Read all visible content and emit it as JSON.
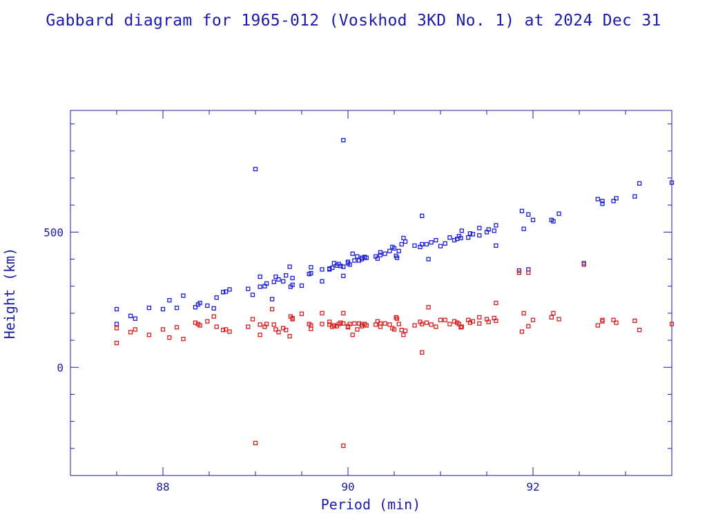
{
  "chart_data": {
    "type": "scatter",
    "title": "Gabbard diagram for 1965-012 (Voskhod 3KD No. 1) at 2024 Dec 31",
    "xlabel": "Period (min)",
    "ylabel": "Height (km)",
    "xlim": [
      87.0,
      93.5
    ],
    "ylim": [
      -400,
      950
    ],
    "x_ticks_major": [
      88,
      90,
      92
    ],
    "x_ticks_minor_step": 0.5,
    "y_ticks_major": [
      0,
      500
    ],
    "y_ticks_minor_step": 100,
    "grid": false,
    "legend": "none",
    "series": [
      {
        "color": "#1a1ad8",
        "label_role": "apogee",
        "points": [
          [
            87.5,
            215
          ],
          [
            87.5,
            160
          ],
          [
            87.65,
            190
          ],
          [
            87.7,
            180
          ],
          [
            87.85,
            220
          ],
          [
            88.0,
            215
          ],
          [
            88.07,
            248
          ],
          [
            88.15,
            220
          ],
          [
            88.22,
            265
          ],
          [
            88.35,
            222
          ],
          [
            88.38,
            232
          ],
          [
            88.4,
            238
          ],
          [
            88.48,
            228
          ],
          [
            88.55,
            218
          ],
          [
            88.58,
            258
          ],
          [
            88.65,
            278
          ],
          [
            88.68,
            280
          ],
          [
            88.72,
            288
          ],
          [
            88.92,
            290
          ],
          [
            88.97,
            268
          ],
          [
            89.05,
            298
          ],
          [
            89.05,
            335
          ],
          [
            89.1,
            300
          ],
          [
            89.12,
            310
          ],
          [
            89.18,
            252
          ],
          [
            89.2,
            316
          ],
          [
            89.22,
            335
          ],
          [
            89.25,
            325
          ],
          [
            89.3,
            318
          ],
          [
            89.33,
            340
          ],
          [
            89.37,
            372
          ],
          [
            89.38,
            298
          ],
          [
            89.4,
            305
          ],
          [
            89.4,
            330
          ],
          [
            89.5,
            302
          ],
          [
            89.58,
            345
          ],
          [
            89.6,
            348
          ],
          [
            89.6,
            370
          ],
          [
            89.72,
            318
          ],
          [
            89.72,
            362
          ],
          [
            89.8,
            365
          ],
          [
            89.8,
            362
          ],
          [
            89.83,
            368
          ],
          [
            89.85,
            385
          ],
          [
            89.88,
            376
          ],
          [
            89.9,
            382
          ],
          [
            89.92,
            375
          ],
          [
            89.95,
            338
          ],
          [
            89.95,
            372
          ],
          [
            90.0,
            390
          ],
          [
            90.0,
            385
          ],
          [
            90.02,
            380
          ],
          [
            90.05,
            420
          ],
          [
            90.07,
            395
          ],
          [
            90.1,
            410
          ],
          [
            90.12,
            395
          ],
          [
            90.15,
            400
          ],
          [
            90.15,
            405
          ],
          [
            90.18,
            408
          ],
          [
            90.2,
            405
          ],
          [
            90.3,
            410
          ],
          [
            90.32,
            402
          ],
          [
            90.35,
            415
          ],
          [
            90.35,
            425
          ],
          [
            90.4,
            420
          ],
          [
            90.45,
            430
          ],
          [
            90.48,
            445
          ],
          [
            90.5,
            440
          ],
          [
            90.52,
            412
          ],
          [
            90.53,
            405
          ],
          [
            90.55,
            430
          ],
          [
            90.58,
            455
          ],
          [
            90.6,
            478
          ],
          [
            90.62,
            465
          ],
          [
            90.72,
            450
          ],
          [
            90.78,
            445
          ],
          [
            90.8,
            455
          ],
          [
            90.8,
            560
          ],
          [
            90.85,
            455
          ],
          [
            90.87,
            400
          ],
          [
            90.9,
            462
          ],
          [
            90.95,
            470
          ],
          [
            91.0,
            448
          ],
          [
            91.05,
            458
          ],
          [
            91.1,
            480
          ],
          [
            91.15,
            470
          ],
          [
            91.18,
            475
          ],
          [
            91.2,
            485
          ],
          [
            91.22,
            478
          ],
          [
            91.23,
            505
          ],
          [
            91.3,
            480
          ],
          [
            91.32,
            495
          ],
          [
            91.35,
            492
          ],
          [
            91.42,
            515
          ],
          [
            91.42,
            488
          ],
          [
            91.5,
            500
          ],
          [
            91.52,
            510
          ],
          [
            91.58,
            505
          ],
          [
            91.6,
            525
          ],
          [
            91.6,
            450
          ],
          [
            91.85,
            358
          ],
          [
            91.88,
            578
          ],
          [
            91.9,
            512
          ],
          [
            91.95,
            565
          ],
          [
            91.95,
            362
          ],
          [
            92.0,
            545
          ],
          [
            92.2,
            545
          ],
          [
            92.22,
            540
          ],
          [
            92.28,
            568
          ],
          [
            92.55,
            385
          ],
          [
            92.7,
            622
          ],
          [
            92.75,
            605
          ],
          [
            92.75,
            615
          ],
          [
            92.87,
            615
          ],
          [
            92.9,
            625
          ],
          [
            93.1,
            632
          ],
          [
            93.15,
            680
          ],
          [
            93.5,
            683
          ],
          [
            89.0,
            733
          ],
          [
            89.95,
            840
          ]
        ]
      },
      {
        "color": "#d81a1a",
        "label_role": "perigee",
        "points": [
          [
            87.5,
            145
          ],
          [
            87.5,
            90
          ],
          [
            87.65,
            130
          ],
          [
            87.7,
            140
          ],
          [
            87.85,
            120
          ],
          [
            88.0,
            140
          ],
          [
            88.07,
            110
          ],
          [
            88.15,
            148
          ],
          [
            88.22,
            105
          ],
          [
            88.35,
            165
          ],
          [
            88.38,
            160
          ],
          [
            88.4,
            155
          ],
          [
            88.48,
            170
          ],
          [
            88.55,
            188
          ],
          [
            88.58,
            150
          ],
          [
            88.65,
            138
          ],
          [
            88.68,
            140
          ],
          [
            88.72,
            132
          ],
          [
            88.92,
            150
          ],
          [
            88.97,
            178
          ],
          [
            89.05,
            158
          ],
          [
            89.05,
            120
          ],
          [
            89.1,
            150
          ],
          [
            89.12,
            160
          ],
          [
            89.18,
            215
          ],
          [
            89.2,
            158
          ],
          [
            89.22,
            140
          ],
          [
            89.25,
            130
          ],
          [
            89.3,
            145
          ],
          [
            89.33,
            138
          ],
          [
            89.37,
            115
          ],
          [
            89.38,
            188
          ],
          [
            89.4,
            178
          ],
          [
            89.4,
            182
          ],
          [
            89.5,
            198
          ],
          [
            89.58,
            160
          ],
          [
            89.6,
            155
          ],
          [
            89.6,
            142
          ],
          [
            89.72,
            200
          ],
          [
            89.72,
            160
          ],
          [
            89.8,
            168
          ],
          [
            89.8,
            158
          ],
          [
            89.83,
            150
          ],
          [
            89.85,
            155
          ],
          [
            89.88,
            152
          ],
          [
            89.9,
            160
          ],
          [
            89.92,
            165
          ],
          [
            89.95,
            200
          ],
          [
            89.95,
            162
          ],
          [
            90.0,
            148
          ],
          [
            90.0,
            152
          ],
          [
            90.02,
            160
          ],
          [
            90.05,
            120
          ],
          [
            90.07,
            162
          ],
          [
            90.1,
            140
          ],
          [
            90.12,
            162
          ],
          [
            90.15,
            152
          ],
          [
            90.15,
            158
          ],
          [
            90.18,
            160
          ],
          [
            90.2,
            155
          ],
          [
            90.3,
            158
          ],
          [
            90.32,
            170
          ],
          [
            90.35,
            162
          ],
          [
            90.35,
            150
          ],
          [
            90.4,
            162
          ],
          [
            90.45,
            158
          ],
          [
            90.48,
            145
          ],
          [
            90.5,
            140
          ],
          [
            90.52,
            185
          ],
          [
            90.53,
            180
          ],
          [
            90.55,
            160
          ],
          [
            90.58,
            138
          ],
          [
            90.6,
            120
          ],
          [
            90.62,
            135
          ],
          [
            90.72,
            155
          ],
          [
            90.78,
            168
          ],
          [
            90.8,
            160
          ],
          [
            90.8,
            55
          ],
          [
            90.85,
            165
          ],
          [
            90.87,
            222
          ],
          [
            90.9,
            158
          ],
          [
            90.95,
            150
          ],
          [
            91.0,
            175
          ],
          [
            91.05,
            175
          ],
          [
            91.1,
            160
          ],
          [
            91.15,
            170
          ],
          [
            91.18,
            165
          ],
          [
            91.2,
            160
          ],
          [
            91.22,
            148
          ],
          [
            91.23,
            150
          ],
          [
            91.3,
            175
          ],
          [
            91.32,
            165
          ],
          [
            91.35,
            170
          ],
          [
            91.42,
            162
          ],
          [
            91.42,
            185
          ],
          [
            91.5,
            178
          ],
          [
            91.52,
            168
          ],
          [
            91.58,
            182
          ],
          [
            91.6,
            172
          ],
          [
            91.6,
            238
          ],
          [
            91.85,
            350
          ],
          [
            91.88,
            132
          ],
          [
            91.9,
            200
          ],
          [
            91.95,
            152
          ],
          [
            91.95,
            350
          ],
          [
            92.0,
            175
          ],
          [
            92.2,
            185
          ],
          [
            92.22,
            200
          ],
          [
            92.28,
            178
          ],
          [
            92.55,
            380
          ],
          [
            92.7,
            155
          ],
          [
            92.75,
            175
          ],
          [
            92.75,
            170
          ],
          [
            92.87,
            175
          ],
          [
            92.9,
            165
          ],
          [
            93.1,
            172
          ],
          [
            93.15,
            138
          ],
          [
            93.5,
            160
          ],
          [
            89.0,
            -280
          ],
          [
            89.95,
            -290
          ]
        ]
      }
    ]
  }
}
